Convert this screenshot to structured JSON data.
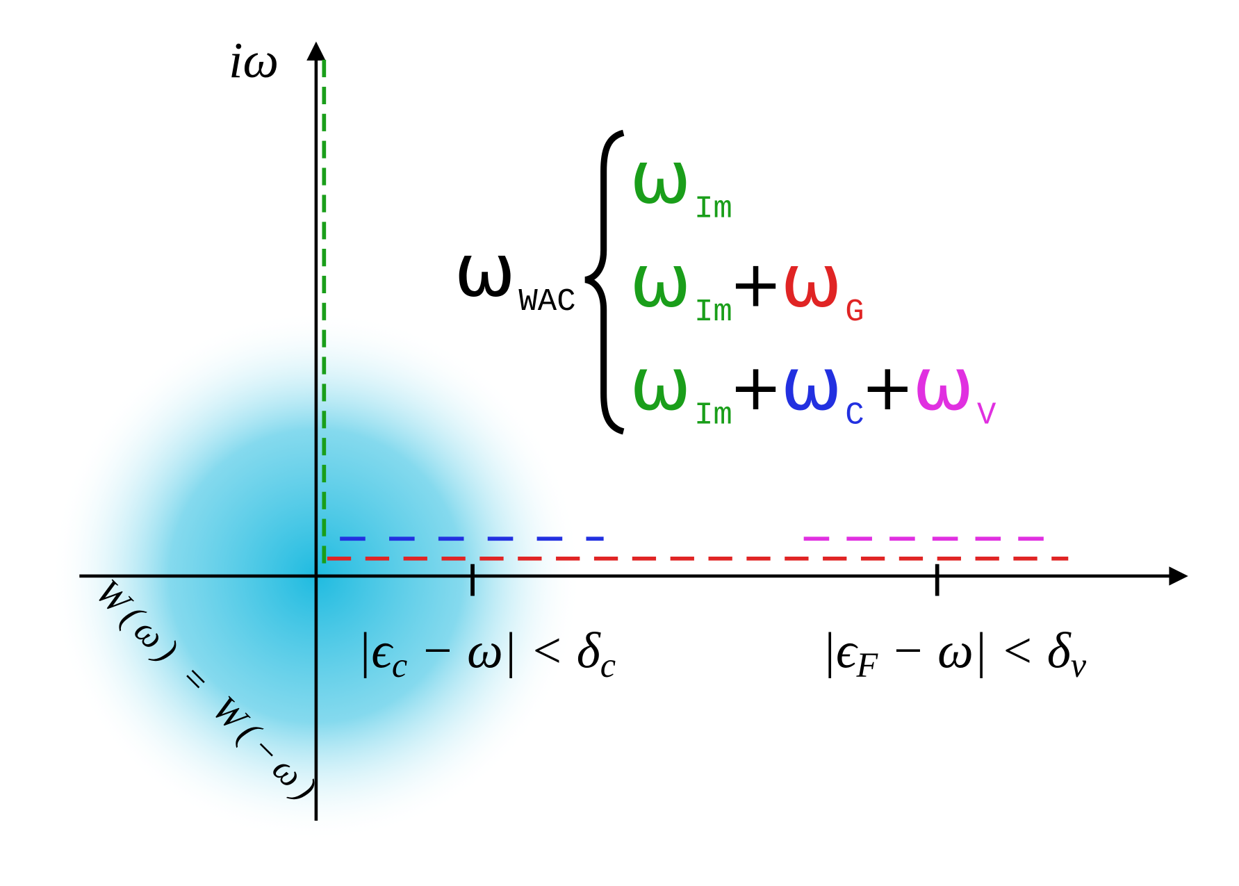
{
  "axes": {
    "y_label": "iω"
  },
  "x_marks": [
    [
      "|ϵ",
      "c",
      " − ω| < δ",
      "c"
    ],
    [
      "|ϵ",
      "F",
      " − ω| < δ",
      "v"
    ]
  ],
  "symmetry_label": "W(ω) = W(−ω)",
  "equation": {
    "lhs": {
      "symbol": "ω",
      "sub": "WAC"
    },
    "operator": "+",
    "cases": [
      [
        {
          "symbol": "ω",
          "sub": "Im",
          "color": "#1a9e1a"
        }
      ],
      [
        {
          "symbol": "ω",
          "sub": "Im",
          "color": "#1a9e1a"
        },
        {
          "symbol": "ω",
          "sub": "G",
          "color": "#e02424"
        }
      ],
      [
        {
          "symbol": "ω",
          "sub": "Im",
          "color": "#1a9e1a"
        },
        {
          "symbol": "ω",
          "sub": "C",
          "color": "#2230e0"
        },
        {
          "symbol": "ω",
          "sub": "V",
          "color": "#e030e0"
        }
      ]
    ]
  }
}
